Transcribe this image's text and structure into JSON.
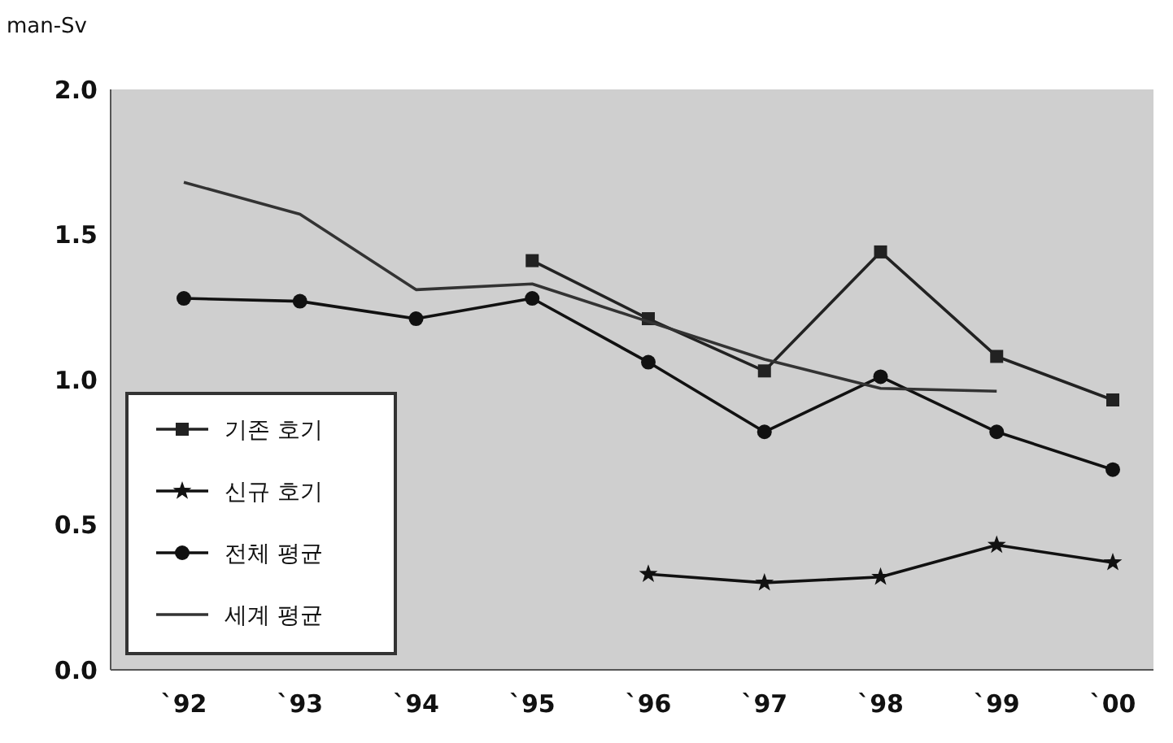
{
  "chart_data": {
    "type": "line",
    "ylabel": "man-Sv",
    "categories": [
      "`92",
      "`93",
      "`94",
      "`95",
      "`96",
      "`97",
      "`98",
      "`99",
      "`00"
    ],
    "ylim": [
      0,
      2
    ],
    "yticks": [
      {
        "value": 0,
        "label": "0.0"
      },
      {
        "value": 0.5,
        "label": "0.5"
      },
      {
        "value": 1,
        "label": "1.0"
      },
      {
        "value": 1.5,
        "label": "1.5"
      },
      {
        "value": 2,
        "label": "2.0"
      }
    ],
    "grid": false,
    "legend": "bottom left",
    "series": [
      {
        "name": "기존 호기",
        "color": "#222222",
        "marker": "square",
        "values": [
          null,
          null,
          null,
          1.41,
          1.21,
          1.03,
          1.44,
          1.08,
          0.93
        ]
      },
      {
        "name": "신규 호기",
        "color": "#111111",
        "marker": "star",
        "values": [
          null,
          null,
          null,
          null,
          0.33,
          0.3,
          0.32,
          0.43,
          0.37
        ]
      },
      {
        "name": "전체 평균",
        "color": "#111111",
        "marker": "circle",
        "values": [
          1.28,
          1.27,
          1.21,
          1.28,
          1.06,
          0.82,
          1.01,
          0.82,
          0.69
        ]
      },
      {
        "name": "세계 평균",
        "color": "#333333",
        "marker": "none",
        "values": [
          1.68,
          1.57,
          1.31,
          1.33,
          1.2,
          1.07,
          0.97,
          0.96,
          null
        ]
      }
    ]
  }
}
